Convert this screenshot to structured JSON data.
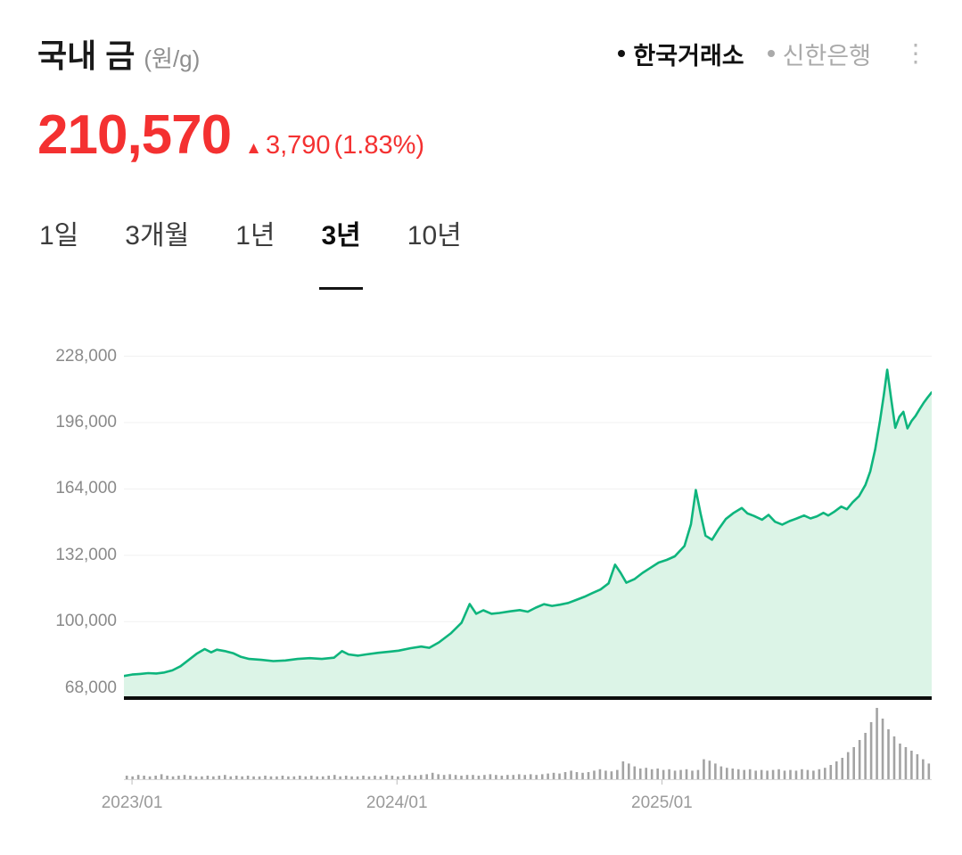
{
  "header": {
    "title": "국내 금",
    "unit": "(원/g)",
    "legend": [
      {
        "label": "한국거래소",
        "color": "#111111"
      },
      {
        "label": "신한은행",
        "color": "#aaaaaa"
      }
    ],
    "menu_glyph": "⋮"
  },
  "price": {
    "value": "210,570",
    "direction": "up",
    "arrow": "▲",
    "change": "3,790",
    "change_pct": "(1.83%)",
    "color": "#f43131"
  },
  "tabs": [
    {
      "label": "1일",
      "active": false
    },
    {
      "label": "3개월",
      "active": false
    },
    {
      "label": "1년",
      "active": false
    },
    {
      "label": "3년",
      "active": true
    },
    {
      "label": "10년",
      "active": false
    }
  ],
  "chart_data": {
    "type": "area",
    "title": "국내 금 (원/g)",
    "period": "3년",
    "grid": true,
    "legend_position": "top-right",
    "line_color": "#0eb57d",
    "fill_color": "#dcf4e7",
    "volume_color": "#a3a3a3",
    "ylim": [
      64000,
      236000
    ],
    "last_value": 210570,
    "y_ticks": [
      {
        "label": "228,000",
        "value": 228000
      },
      {
        "label": "196,000",
        "value": 196000
      },
      {
        "label": "164,000",
        "value": 164000
      },
      {
        "label": "132,000",
        "value": 132000
      },
      {
        "label": "100,000",
        "value": 100000
      },
      {
        "label": "68,000",
        "value": 68000
      }
    ],
    "x_ticks": [
      {
        "label": "2023/01",
        "pos": 0.01
      },
      {
        "label": "2024/01",
        "pos": 0.338
      },
      {
        "label": "2025/01",
        "pos": 0.666
      }
    ],
    "series": [
      {
        "name": "한국거래소",
        "points": [
          [
            0.0,
            73800
          ],
          [
            0.01,
            74500
          ],
          [
            0.02,
            74800
          ],
          [
            0.03,
            75200
          ],
          [
            0.04,
            75000
          ],
          [
            0.05,
            75500
          ],
          [
            0.06,
            76500
          ],
          [
            0.07,
            78500
          ],
          [
            0.08,
            81500
          ],
          [
            0.09,
            84500
          ],
          [
            0.1,
            86800
          ],
          [
            0.108,
            85200
          ],
          [
            0.115,
            86500
          ],
          [
            0.125,
            85800
          ],
          [
            0.135,
            84800
          ],
          [
            0.145,
            83000
          ],
          [
            0.155,
            82000
          ],
          [
            0.17,
            81600
          ],
          [
            0.185,
            81000
          ],
          [
            0.2,
            81300
          ],
          [
            0.215,
            82000
          ],
          [
            0.23,
            82400
          ],
          [
            0.245,
            82000
          ],
          [
            0.26,
            82600
          ],
          [
            0.27,
            85800
          ],
          [
            0.278,
            84200
          ],
          [
            0.29,
            83600
          ],
          [
            0.3,
            84200
          ],
          [
            0.315,
            85000
          ],
          [
            0.33,
            85600
          ],
          [
            0.34,
            86000
          ],
          [
            0.355,
            87200
          ],
          [
            0.368,
            88000
          ],
          [
            0.378,
            87400
          ],
          [
            0.39,
            90000
          ],
          [
            0.405,
            94500
          ],
          [
            0.418,
            99500
          ],
          [
            0.428,
            108500
          ],
          [
            0.436,
            103800
          ],
          [
            0.445,
            105500
          ],
          [
            0.455,
            103800
          ],
          [
            0.465,
            104200
          ],
          [
            0.478,
            105000
          ],
          [
            0.49,
            105600
          ],
          [
            0.5,
            104800
          ],
          [
            0.51,
            106800
          ],
          [
            0.52,
            108400
          ],
          [
            0.53,
            107600
          ],
          [
            0.54,
            108200
          ],
          [
            0.55,
            109000
          ],
          [
            0.56,
            110500
          ],
          [
            0.57,
            112000
          ],
          [
            0.58,
            113800
          ],
          [
            0.59,
            115500
          ],
          [
            0.6,
            118500
          ],
          [
            0.608,
            127500
          ],
          [
            0.615,
            123500
          ],
          [
            0.622,
            118800
          ],
          [
            0.632,
            120500
          ],
          [
            0.642,
            123500
          ],
          [
            0.652,
            126000
          ],
          [
            0.662,
            128500
          ],
          [
            0.672,
            129800
          ],
          [
            0.682,
            131500
          ],
          [
            0.694,
            136500
          ],
          [
            0.702,
            147000
          ],
          [
            0.708,
            163500
          ],
          [
            0.714,
            152000
          ],
          [
            0.72,
            141500
          ],
          [
            0.728,
            139500
          ],
          [
            0.736,
            144500
          ],
          [
            0.745,
            149500
          ],
          [
            0.755,
            152500
          ],
          [
            0.765,
            154800
          ],
          [
            0.772,
            152200
          ],
          [
            0.78,
            151000
          ],
          [
            0.79,
            149200
          ],
          [
            0.798,
            151500
          ],
          [
            0.806,
            148200
          ],
          [
            0.815,
            146800
          ],
          [
            0.824,
            148500
          ],
          [
            0.833,
            149800
          ],
          [
            0.842,
            151200
          ],
          [
            0.85,
            149800
          ],
          [
            0.858,
            150800
          ],
          [
            0.866,
            152500
          ],
          [
            0.872,
            151200
          ],
          [
            0.88,
            153200
          ],
          [
            0.888,
            155500
          ],
          [
            0.895,
            154200
          ],
          [
            0.902,
            157500
          ],
          [
            0.91,
            160500
          ],
          [
            0.918,
            166000
          ],
          [
            0.924,
            172500
          ],
          [
            0.93,
            183000
          ],
          [
            0.936,
            197000
          ],
          [
            0.941,
            210000
          ],
          [
            0.945,
            221500
          ],
          [
            0.95,
            207000
          ],
          [
            0.955,
            193500
          ],
          [
            0.96,
            198800
          ],
          [
            0.965,
            201200
          ],
          [
            0.97,
            193200
          ],
          [
            0.975,
            196800
          ],
          [
            0.98,
            199200
          ],
          [
            0.985,
            202500
          ],
          [
            0.99,
            205500
          ],
          [
            0.995,
            208200
          ],
          [
            1.0,
            210570
          ]
        ]
      }
    ],
    "volume_unit": "relative",
    "volume": [
      0.05,
      0.04,
      0.06,
      0.05,
      0.04,
      0.05,
      0.07,
      0.05,
      0.04,
      0.05,
      0.06,
      0.05,
      0.04,
      0.04,
      0.05,
      0.04,
      0.05,
      0.06,
      0.04,
      0.05,
      0.04,
      0.05,
      0.04,
      0.04,
      0.05,
      0.04,
      0.04,
      0.05,
      0.04,
      0.04,
      0.05,
      0.04,
      0.05,
      0.04,
      0.04,
      0.05,
      0.06,
      0.04,
      0.05,
      0.04,
      0.04,
      0.05,
      0.04,
      0.05,
      0.04,
      0.06,
      0.05,
      0.04,
      0.05,
      0.06,
      0.05,
      0.06,
      0.07,
      0.09,
      0.07,
      0.06,
      0.07,
      0.06,
      0.05,
      0.06,
      0.06,
      0.05,
      0.06,
      0.07,
      0.06,
      0.05,
      0.06,
      0.06,
      0.07,
      0.06,
      0.07,
      0.06,
      0.07,
      0.08,
      0.09,
      0.08,
      0.1,
      0.12,
      0.1,
      0.09,
      0.1,
      0.12,
      0.14,
      0.12,
      0.11,
      0.13,
      0.25,
      0.22,
      0.18,
      0.15,
      0.16,
      0.14,
      0.15,
      0.13,
      0.14,
      0.12,
      0.13,
      0.14,
      0.12,
      0.13,
      0.28,
      0.26,
      0.22,
      0.18,
      0.16,
      0.15,
      0.14,
      0.13,
      0.14,
      0.12,
      0.13,
      0.12,
      0.13,
      0.14,
      0.12,
      0.13,
      0.12,
      0.14,
      0.13,
      0.12,
      0.14,
      0.16,
      0.2,
      0.25,
      0.3,
      0.38,
      0.45,
      0.55,
      0.65,
      0.8,
      1.0,
      0.85,
      0.7,
      0.6,
      0.5,
      0.45,
      0.4,
      0.35,
      0.28,
      0.22
    ]
  }
}
